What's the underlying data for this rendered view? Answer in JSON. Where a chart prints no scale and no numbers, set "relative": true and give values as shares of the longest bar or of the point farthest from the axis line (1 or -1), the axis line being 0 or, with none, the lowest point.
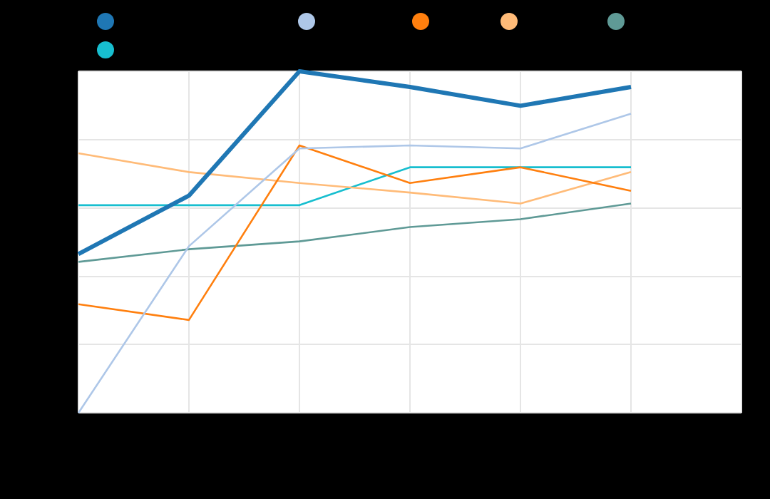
{
  "chart_data": {
    "type": "line",
    "relative": true,
    "grid": true,
    "marker": "none",
    "categories": [
      null,
      null,
      null,
      null,
      null,
      null,
      null
    ],
    "series": [
      {
        "color": "#1f77b4",
        "values": [
          0.465,
          0.636,
          1,
          0.954,
          0.899,
          0.954,
          null
        ]
      },
      {
        "color": "#aec7e8",
        "values": [
          0,
          0.488,
          0.774,
          0.783,
          0.774,
          0.876,
          null
        ]
      },
      {
        "color": "#ff7f0e",
        "values": [
          0.318,
          0.272,
          0.783,
          0.673,
          0.719,
          0.65,
          null
        ]
      },
      {
        "color": "#ffbb78",
        "values": [
          0.76,
          0.705,
          0.673,
          0.645,
          0.613,
          0.705,
          null
        ]
      },
      {
        "color": "#5f9a96",
        "values": [
          0.442,
          0.479,
          0.502,
          0.544,
          0.567,
          0.613,
          null
        ]
      },
      {
        "color": "#17becf",
        "values": [
          0.608,
          0.608,
          0.608,
          0.719,
          0.719,
          0.719,
          null
        ]
      }
    ]
  }
}
